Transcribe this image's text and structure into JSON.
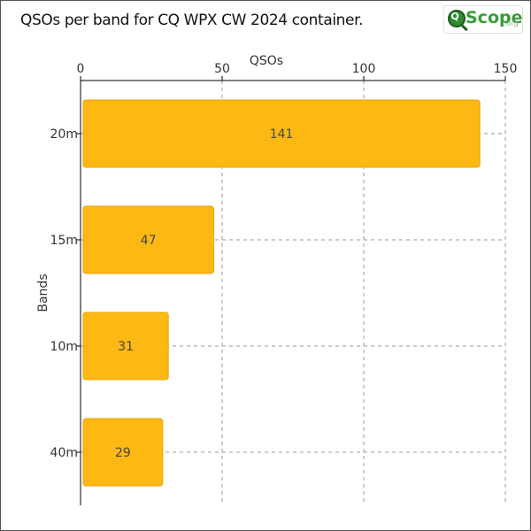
{
  "title": "QSOs per band for CQ WPX CW 2024 container.",
  "logo": {
    "word": "Scope",
    "org": ".org",
    "mark": "Q"
  },
  "colors": {
    "bar": "#fdb813",
    "bar_stroke": "#e6a50a",
    "grid": "#999999",
    "axis": "#000000"
  },
  "chart_data": {
    "type": "bar",
    "orientation": "horizontal",
    "categories": [
      "20m",
      "15m",
      "10m",
      "40m"
    ],
    "values": [
      141,
      47,
      31,
      29
    ],
    "xlabel": "QSOs",
    "ylabel": "Bands",
    "xlim": [
      0,
      150
    ],
    "xticks": [
      0,
      50,
      100,
      150
    ],
    "x_axis_position": "top",
    "grid": true,
    "data_labels": true
  }
}
